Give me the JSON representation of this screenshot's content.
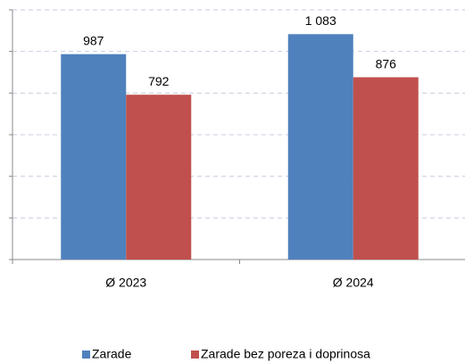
{
  "chart_data": {
    "type": "bar",
    "categories": [
      "Ø 2023",
      "Ø 2024"
    ],
    "series": [
      {
        "name": "Zarade",
        "color": "#4f81bd",
        "values": [
          987,
          1083
        ],
        "value_labels": [
          "987",
          "1 083"
        ]
      },
      {
        "name": "Zarade bez poreza i doprinosa",
        "color": "#c0504d",
        "values": [
          792,
          876
        ],
        "value_labels": [
          "792",
          "876"
        ]
      }
    ],
    "ylim": [
      0,
      1200
    ],
    "yticks": [
      0,
      200,
      400,
      600,
      800,
      1000,
      1200
    ],
    "grid": true,
    "legend": "bottom"
  }
}
